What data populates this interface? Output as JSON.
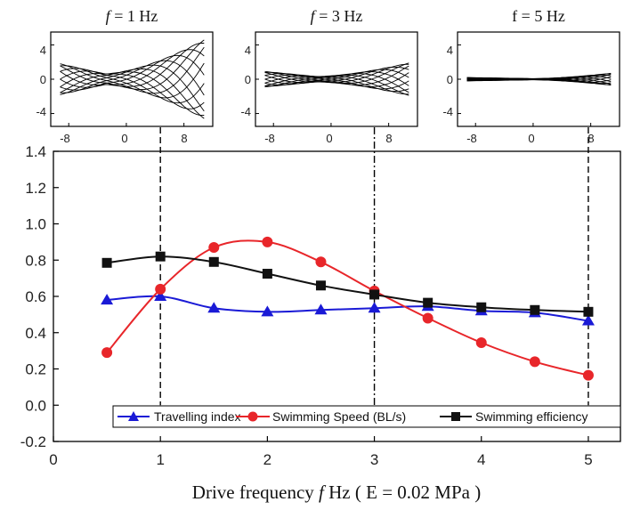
{
  "chart_data": [
    {
      "type": "line",
      "panel": "top-left",
      "title_var": "f",
      "title_rest": " = 1 Hz",
      "description": "wave envelope traces",
      "xlim": [
        -10.5,
        12
      ],
      "ylim": [
        -5.5,
        5.5
      ],
      "xticks": [
        -8,
        0,
        8
      ],
      "yticks": [
        4,
        0,
        -4
      ],
      "envelope": {
        "tail_amplitude": 4.6,
        "head_amplitude": 1.8,
        "node_x": -3,
        "frames": 12
      }
    },
    {
      "type": "line",
      "panel": "top-center",
      "title_var": "f",
      "title_rest": " = 3 Hz",
      "description": "wave envelope traces",
      "xlim": [
        -10.5,
        12
      ],
      "ylim": [
        -5.5,
        5.5
      ],
      "xticks": [
        -8,
        0,
        8
      ],
      "yticks": [
        4,
        0,
        -4
      ],
      "envelope": {
        "tail_amplitude": 1.9,
        "head_amplitude": 0.9,
        "node_x": -2,
        "frames": 12
      }
    },
    {
      "type": "line",
      "panel": "top-right",
      "title_var": "",
      "title_rest": "f = 5 Hz",
      "description": "wave envelope traces",
      "xlim": [
        -10.5,
        12
      ],
      "ylim": [
        -5.5,
        5.5
      ],
      "xticks": [
        -8,
        0,
        8
      ],
      "yticks": [
        4,
        0,
        -4
      ],
      "envelope": {
        "tail_amplitude": 0.7,
        "head_amplitude": 0.2,
        "node_x": 0,
        "frames": 12
      }
    },
    {
      "type": "line",
      "panel": "main",
      "xlabel_prefix": "Drive frequency ",
      "xlabel_var": "f",
      "xlabel_suffix": " Hz ( E = 0.02 MPa )",
      "xlim": [
        0,
        5.3
      ],
      "ylim": [
        -0.2,
        1.4
      ],
      "xticks": [
        0,
        1,
        2,
        3,
        4,
        5
      ],
      "yticks": [
        -0.2,
        0.0,
        0.2,
        0.4,
        0.6,
        0.8,
        1.0,
        1.2,
        1.4
      ],
      "ytick_labels": [
        "-0.2",
        "0.0",
        "0.2",
        "0.4",
        "0.6",
        "0.8",
        "1.0",
        "1.2",
        "1.4"
      ],
      "xtick_labels": [
        "0",
        "1",
        "2",
        "3",
        "4",
        "5"
      ],
      "vlines": [
        {
          "x": 1,
          "style": "dashed"
        },
        {
          "x": 3,
          "style": "dashdot"
        },
        {
          "x": 5,
          "style": "dashed"
        }
      ],
      "legend_position": "bottom",
      "series": [
        {
          "name": "Travelling index",
          "color": "#1a1ad6",
          "marker": "triangle",
          "x": [
            0.5,
            1.0,
            1.5,
            2.0,
            2.5,
            3.0,
            3.5,
            4.0,
            4.5,
            5.0
          ],
          "values": [
            0.58,
            0.6,
            0.535,
            0.515,
            0.525,
            0.535,
            0.545,
            0.52,
            0.51,
            0.465
          ]
        },
        {
          "name": "Swimming Speed (BL/s)",
          "color": "#e8262a",
          "marker": "circle",
          "x": [
            0.5,
            1.0,
            1.5,
            2.0,
            2.5,
            3.0,
            3.5,
            4.0,
            4.5,
            5.0
          ],
          "values": [
            0.29,
            0.64,
            0.87,
            0.9,
            0.79,
            0.63,
            0.48,
            0.345,
            0.24,
            0.165
          ]
        },
        {
          "name": "Swimming efficiency",
          "color": "#111111",
          "marker": "square",
          "x": [
            0.5,
            1.0,
            1.5,
            2.0,
            2.5,
            3.0,
            3.5,
            4.0,
            4.5,
            5.0
          ],
          "values": [
            0.785,
            0.82,
            0.79,
            0.725,
            0.66,
            0.61,
            0.565,
            0.54,
            0.525,
            0.515
          ]
        }
      ]
    }
  ]
}
